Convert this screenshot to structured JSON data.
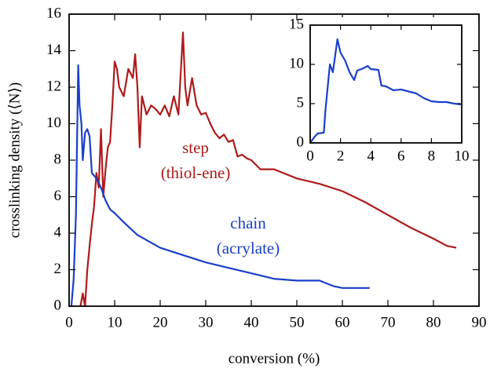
{
  "chart_data": [
    {
      "type": "line",
      "xlabel": "conversion (%)",
      "ylabel": "crosslinking density (⟨N⟩)",
      "annotations": [
        "step",
        "(thiol-ene)",
        "chain",
        "(acrylate)"
      ],
      "xlim": [
        0,
        90
      ],
      "ylim": [
        0,
        16
      ],
      "xticks": [
        0,
        10,
        20,
        30,
        40,
        50,
        60,
        70,
        80,
        90
      ],
      "yticks": [
        0,
        2,
        4,
        6,
        8,
        10,
        12,
        14,
        16
      ],
      "series": [
        {
          "color": "#b01a1a",
          "x": [
            2.5,
            3,
            3.5,
            4,
            4.5,
            5,
            5.5,
            6,
            6.5,
            7,
            7.5,
            8,
            8.5,
            9,
            9.5,
            10,
            10.5,
            11,
            12,
            13,
            14,
            14.5,
            15,
            15.5,
            16,
            17,
            18,
            19,
            20,
            21,
            22,
            23,
            24,
            25,
            25.5,
            26,
            27,
            28,
            29,
            30,
            31,
            32,
            33,
            34,
            35,
            36,
            37,
            38,
            39,
            40,
            42,
            45,
            50,
            55,
            60,
            65,
            70,
            75,
            80,
            83,
            85
          ],
          "values": [
            0,
            0.7,
            0,
            2,
            3.3,
            4.5,
            5.5,
            7.3,
            6.5,
            9.7,
            6,
            7.5,
            8.7,
            9,
            11,
            13.4,
            13,
            12,
            11.5,
            13,
            12.5,
            13.8,
            12,
            8.7,
            11.5,
            10.5,
            11,
            10.8,
            10.5,
            11,
            10.4,
            11.5,
            10.5,
            15,
            12,
            11,
            12.5,
            11,
            10.5,
            10.6,
            10,
            9.5,
            9.2,
            9.4,
            9,
            9.1,
            8.2,
            8.3,
            8.1,
            8,
            7.5,
            7.5,
            7,
            6.7,
            6.3,
            5.7,
            5,
            4.3,
            3.7,
            3.3,
            3.2
          ]
        },
        {
          "color": "#1a3fcc",
          "x": [
            0.5,
            1,
            1.5,
            2,
            2.3,
            2.7,
            3,
            3.5,
            4,
            4.5,
            5,
            6,
            7,
            8,
            9,
            10,
            12,
            15,
            20,
            25,
            30,
            35,
            40,
            45,
            50,
            55,
            58,
            60,
            66
          ],
          "values": [
            0,
            1.5,
            5,
            13.2,
            11,
            10,
            8,
            9.5,
            9.7,
            9.3,
            7.3,
            7,
            6.5,
            5.8,
            5.3,
            5.1,
            4.6,
            3.9,
            3.2,
            2.8,
            2.4,
            2.1,
            1.8,
            1.5,
            1.4,
            1.4,
            1.1,
            1,
            1
          ]
        }
      ]
    },
    {
      "type": "line",
      "xlim": [
        0,
        10
      ],
      "ylim": [
        0,
        15
      ],
      "xticks": [
        0,
        2,
        4,
        6,
        8,
        10
      ],
      "yticks": [
        0,
        5,
        10,
        15
      ],
      "series": [
        {
          "color": "#1a3fcc",
          "x": [
            0,
            0.3,
            0.5,
            0.9,
            1,
            1.3,
            1.5,
            1.8,
            2,
            2.3,
            2.6,
            2.9,
            3.1,
            3.5,
            3.8,
            4,
            4.5,
            4.7,
            5,
            5.5,
            6,
            7,
            7.5,
            8,
            8.5,
            9,
            9.5,
            10
          ],
          "values": [
            0,
            0.8,
            1.2,
            1.3,
            4,
            10,
            9,
            13.2,
            11.5,
            10.5,
            9,
            8,
            9.2,
            9.5,
            9.8,
            9.4,
            9.3,
            7.3,
            7.2,
            6.7,
            6.8,
            6.3,
            5.7,
            5.3,
            5.2,
            5.2,
            5,
            4.9
          ]
        }
      ]
    }
  ]
}
